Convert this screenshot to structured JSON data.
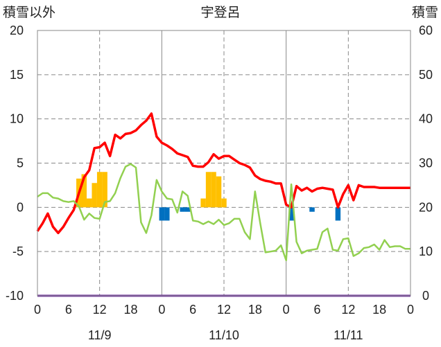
{
  "chart_data": {
    "type": "bar+line",
    "title": "宇登呂",
    "left_axis_label": "積雪以外",
    "right_axis_label": "積雪",
    "left_ylim": [
      -10,
      20
    ],
    "left_yticks": [
      -10,
      -5,
      0,
      5,
      10,
      15,
      20
    ],
    "right_ylim": [
      0,
      60
    ],
    "right_yticks": [
      0,
      10,
      20,
      30,
      40,
      50,
      60
    ],
    "xlim": [
      0,
      72
    ],
    "x_hour_ticks": [
      0,
      6,
      12,
      18,
      0,
      6,
      12,
      18,
      0,
      6,
      12,
      18,
      0
    ],
    "date_labels": [
      {
        "label": "11/9",
        "hour": 12
      },
      {
        "label": "11/10",
        "hour": 36
      },
      {
        "label": "11/11",
        "hour": 60
      }
    ],
    "grid": {
      "dashed_x_hours": [
        12,
        36,
        60
      ],
      "solid_x_hours": [
        24,
        48
      ],
      "y_lines": true
    },
    "colors": {
      "snow_depth": "#ffc000",
      "precip": "#0070c0",
      "temperature": "#ff0000",
      "wind": "#92d050",
      "baseline": "#7030a0",
      "grid": "#888888"
    },
    "series": [
      {
        "key": "snow_depth_increase",
        "axis": "right",
        "kind": "bar",
        "points": [
          [
            8,
            6.5
          ],
          [
            9,
            7.5
          ],
          [
            10,
            2
          ],
          [
            11,
            5.5
          ],
          [
            12,
            8
          ],
          [
            13,
            8
          ]
        ],
        "points2": [
          [
            32,
            2
          ],
          [
            33,
            8
          ],
          [
            34,
            8
          ],
          [
            35,
            7
          ],
          [
            36,
            2
          ]
        ]
      },
      {
        "key": "precipitation",
        "axis": "left",
        "kind": "bar",
        "points": [
          [
            24,
            -1.5
          ],
          [
            25,
            -1.5
          ],
          [
            28,
            -0.5
          ],
          [
            29,
            -0.5
          ],
          [
            49,
            -1.5
          ],
          [
            53,
            -0.5
          ],
          [
            58,
            -1.5
          ]
        ]
      },
      {
        "key": "temperature",
        "axis": "left",
        "kind": "line",
        "points": [
          [
            0,
            -2.7
          ],
          [
            1,
            -1.8
          ],
          [
            2,
            -0.7
          ],
          [
            3,
            -2.2
          ],
          [
            4,
            -2.9
          ],
          [
            5,
            -2.2
          ],
          [
            6,
            -1.2
          ],
          [
            7,
            -0.3
          ],
          [
            8,
            1.6
          ],
          [
            9,
            3.4
          ],
          [
            10,
            4.2
          ],
          [
            11,
            6.7
          ],
          [
            12,
            6.8
          ],
          [
            13,
            7.3
          ],
          [
            14,
            5.8
          ],
          [
            15,
            8.2
          ],
          [
            16,
            7.8
          ],
          [
            17,
            8.3
          ],
          [
            18,
            8.4
          ],
          [
            19,
            8.7
          ],
          [
            20,
            9.3
          ],
          [
            21,
            9.8
          ],
          [
            22,
            10.6
          ],
          [
            23,
            8.0
          ],
          [
            24,
            7.3
          ],
          [
            25,
            7.0
          ],
          [
            26,
            6.6
          ],
          [
            27,
            6.1
          ],
          [
            28,
            5.9
          ],
          [
            29,
            5.7
          ],
          [
            30,
            4.7
          ],
          [
            31,
            4.6
          ],
          [
            32,
            4.6
          ],
          [
            33,
            5.1
          ],
          [
            34,
            6.0
          ],
          [
            35,
            5.5
          ],
          [
            36,
            5.8
          ],
          [
            37,
            5.8
          ],
          [
            38,
            5.4
          ],
          [
            39,
            5.0
          ],
          [
            40,
            4.8
          ],
          [
            41,
            4.5
          ],
          [
            42,
            3.6
          ],
          [
            43,
            3.2
          ],
          [
            44,
            3.0
          ],
          [
            45,
            2.9
          ],
          [
            46,
            2.7
          ],
          [
            47,
            2.7
          ],
          [
            48,
            0.3
          ],
          [
            49,
            0.0
          ],
          [
            50,
            2.4
          ],
          [
            51,
            1.9
          ],
          [
            52,
            2.2
          ],
          [
            53,
            1.8
          ],
          [
            54,
            2.1
          ],
          [
            55,
            2.2
          ],
          [
            56,
            2.1
          ],
          [
            57,
            2.0
          ],
          [
            58,
            0.0
          ],
          [
            59,
            1.5
          ],
          [
            60,
            2.5
          ],
          [
            61,
            0.8
          ],
          [
            62,
            2.5
          ],
          [
            63,
            2.3
          ],
          [
            64,
            2.3
          ],
          [
            65,
            2.3
          ],
          [
            66,
            2.2
          ],
          [
            67,
            2.2
          ],
          [
            68,
            2.2
          ],
          [
            69,
            2.2
          ],
          [
            70,
            2.2
          ],
          [
            71,
            2.2
          ],
          [
            72,
            2.2
          ]
        ]
      },
      {
        "key": "wind_speed",
        "axis": "left",
        "kind": "line",
        "points": [
          [
            0,
            1.2
          ],
          [
            1,
            1.6
          ],
          [
            2,
            1.6
          ],
          [
            3,
            1.1
          ],
          [
            4,
            1.0
          ],
          [
            5,
            0.7
          ],
          [
            6,
            0.6
          ],
          [
            7,
            0.7
          ],
          [
            8,
            0.1
          ],
          [
            9,
            -1.4
          ],
          [
            10,
            -0.7
          ],
          [
            11,
            -1.2
          ],
          [
            12,
            -1.3
          ],
          [
            13,
            0.6
          ],
          [
            14,
            0.7
          ],
          [
            15,
            1.6
          ],
          [
            16,
            3.3
          ],
          [
            17,
            4.6
          ],
          [
            18,
            4.9
          ],
          [
            19,
            4.5
          ],
          [
            20,
            -1.7
          ],
          [
            21,
            -2.9
          ],
          [
            22,
            -0.9
          ],
          [
            23,
            3.1
          ],
          [
            24,
            1.8
          ],
          [
            25,
            1.0
          ],
          [
            26,
            0.9
          ],
          [
            27,
            -0.6
          ],
          [
            28,
            1.8
          ],
          [
            29,
            1.3
          ],
          [
            30,
            -1.5
          ],
          [
            31,
            -1.6
          ],
          [
            32,
            -1.9
          ],
          [
            33,
            -1.6
          ],
          [
            34,
            -1.9
          ],
          [
            35,
            -1.4
          ],
          [
            36,
            -2.0
          ],
          [
            37,
            -1.8
          ],
          [
            38,
            -1.3
          ],
          [
            39,
            -1.3
          ],
          [
            40,
            -2.8
          ],
          [
            41,
            -3.6
          ],
          [
            42,
            1.8
          ],
          [
            43,
            -1.8
          ],
          [
            44,
            -5.1
          ],
          [
            45,
            -5.0
          ],
          [
            46,
            -4.9
          ],
          [
            47,
            -4.3
          ],
          [
            48,
            -6.0
          ],
          [
            49,
            2.6
          ],
          [
            50,
            -3.9
          ],
          [
            51,
            -5.2
          ],
          [
            52,
            -4.9
          ],
          [
            53,
            -4.8
          ],
          [
            54,
            -4.7
          ],
          [
            55,
            -2.8
          ],
          [
            56,
            -2.4
          ],
          [
            57,
            -4.8
          ],
          [
            58,
            -4.9
          ],
          [
            59,
            -3.6
          ],
          [
            60,
            -3.5
          ],
          [
            61,
            -5.5
          ],
          [
            62,
            -5.2
          ],
          [
            63,
            -4.6
          ],
          [
            64,
            -4.5
          ],
          [
            65,
            -4.2
          ],
          [
            66,
            -4.8
          ],
          [
            67,
            -3.7
          ],
          [
            68,
            -4.5
          ],
          [
            69,
            -4.4
          ],
          [
            70,
            -4.4
          ],
          [
            71,
            -4.7
          ],
          [
            72,
            -4.7
          ]
        ]
      },
      {
        "key": "baseline",
        "axis": "left",
        "kind": "line",
        "points": [
          [
            0,
            -10
          ],
          [
            72,
            -10
          ]
        ]
      }
    ]
  }
}
